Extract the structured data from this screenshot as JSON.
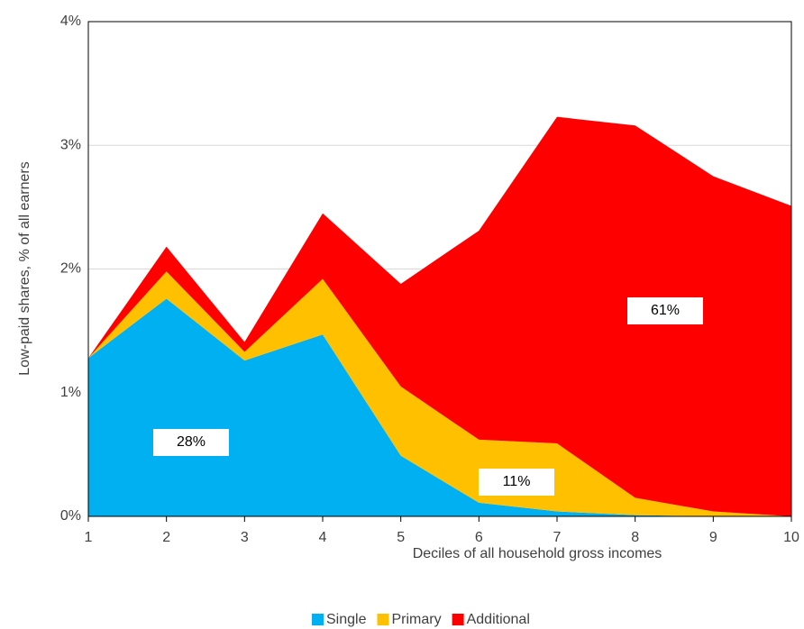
{
  "chart_data": {
    "type": "stacked_area",
    "x": [
      1,
      2,
      3,
      4,
      5,
      6,
      7,
      8,
      9,
      10
    ],
    "series": [
      {
        "name": "Single",
        "color": "#00b0f0",
        "values": [
          1.28,
          1.76,
          1.26,
          1.47,
          0.49,
          0.11,
          0.04,
          0.01,
          0,
          0
        ]
      },
      {
        "name": "Primary",
        "color": "#ffc000",
        "values": [
          0,
          0.22,
          0.07,
          0.45,
          0.56,
          0.51,
          0.55,
          0.14,
          0.04,
          0
        ]
      },
      {
        "name": "Additional",
        "color": "#ff0000",
        "values": [
          0,
          0.2,
          0.08,
          0.53,
          0.83,
          1.69,
          2.64,
          3.01,
          2.71,
          2.51
        ]
      }
    ],
    "xlabel": "Deciles of all household gross incomes",
    "ylabel": "Low-paid shares, % of all earners",
    "xlim": [
      1,
      10
    ],
    "xticks": [
      1,
      2,
      3,
      4,
      5,
      6,
      7,
      8,
      9,
      10
    ],
    "ylim": [
      0,
      4
    ],
    "yticks": [
      {
        "value": 0,
        "label": "0%"
      },
      {
        "value": 1,
        "label": "1%"
      },
      {
        "value": 2,
        "label": "2%"
      },
      {
        "value": 3,
        "label": "3%"
      },
      {
        "value": 4,
        "label": "4%"
      }
    ],
    "grid": true,
    "legend": "bottom",
    "annotations": [
      "28%",
      "11%",
      "61%"
    ]
  }
}
